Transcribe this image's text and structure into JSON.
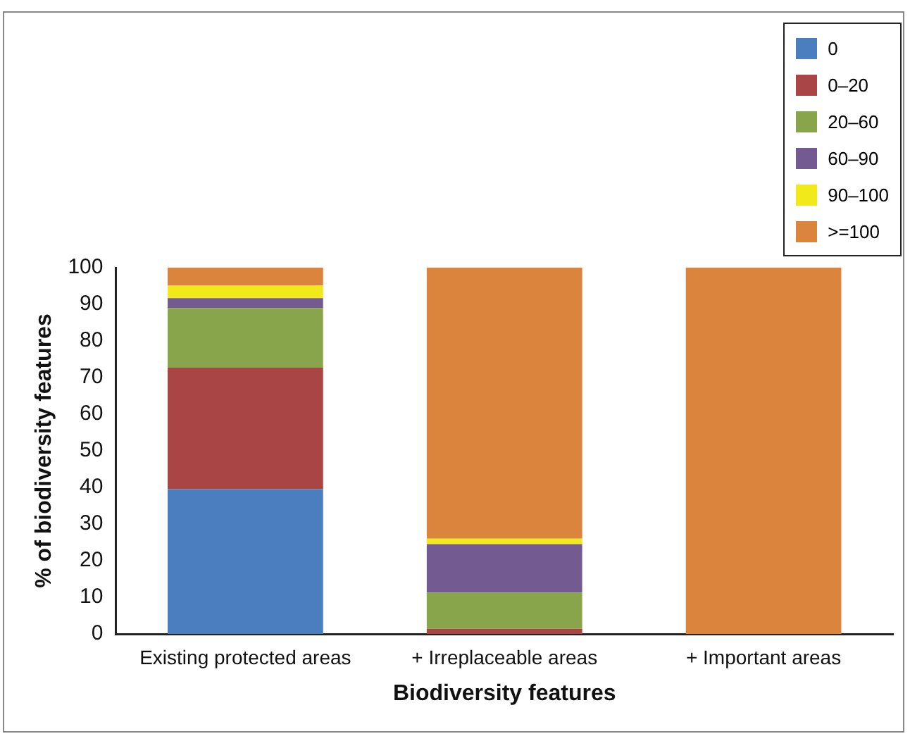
{
  "chart_data": {
    "type": "bar",
    "stacked": true,
    "xlabel": "Biodiversity features",
    "ylabel": "% of biodiversity features",
    "categories": [
      "Existing protected areas",
      "+ Irreplaceable areas",
      "+ Important areas"
    ],
    "series": [
      {
        "name": "0",
        "color": "#4a7ebf",
        "values": [
          39.5,
          0,
          0
        ]
      },
      {
        "name": "0–20",
        "color": "#a94545",
        "values": [
          33.2,
          1.4,
          0
        ]
      },
      {
        "name": "20–60",
        "color": "#89a54b",
        "values": [
          16.3,
          9.9,
          0
        ]
      },
      {
        "name": "60–90",
        "color": "#735a90",
        "values": [
          2.7,
          13.2,
          0
        ]
      },
      {
        "name": "90–100",
        "color": "#f2e91a",
        "values": [
          3.4,
          1.5,
          0
        ]
      },
      {
        "name": ">=100",
        "color": "#db843d",
        "values": [
          4.9,
          74,
          100
        ]
      }
    ],
    "ylim": [
      0,
      100
    ],
    "yticks": [
      0,
      10,
      20,
      30,
      40,
      50,
      60,
      70,
      80,
      90,
      100
    ],
    "grid": false,
    "legend": "top right"
  }
}
